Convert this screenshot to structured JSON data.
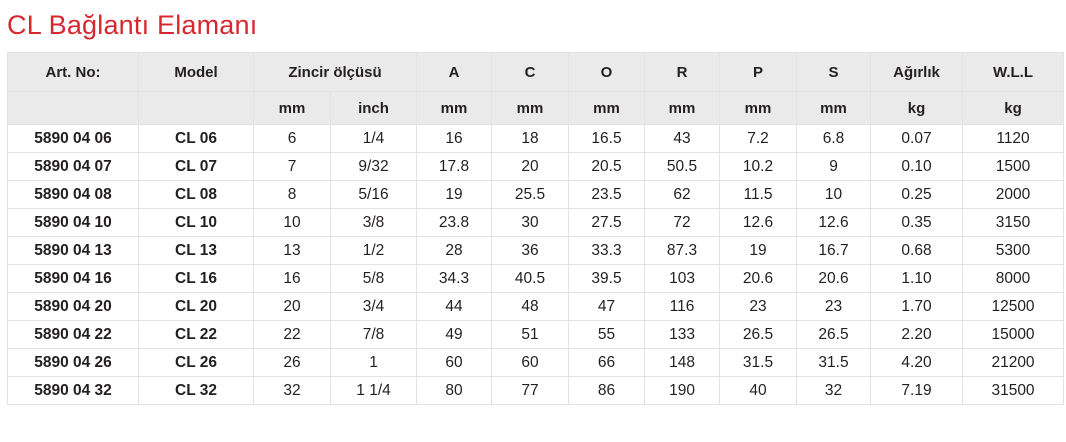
{
  "title": "CL Bağlantı Elamanı",
  "header_top": {
    "art_no": "Art. No:",
    "model": "Model",
    "chain_size": "Zincir ölçüsü",
    "a": "A",
    "c": "C",
    "o": "O",
    "r": "R",
    "p": "P",
    "s": "S",
    "weight": "Ağırlık",
    "wll": "W.L.L"
  },
  "header_units": {
    "mm": "mm",
    "inch": "inch",
    "a": "mm",
    "c": "mm",
    "o": "mm",
    "r": "mm",
    "p": "mm",
    "s": "mm",
    "weight": "kg",
    "wll": "kg"
  },
  "rows": [
    [
      "5890 04 06",
      "CL 06",
      "6",
      "1/4",
      "16",
      "18",
      "16.5",
      "43",
      "7.2",
      "6.8",
      "0.07",
      "1120"
    ],
    [
      "5890 04 07",
      "CL 07",
      "7",
      "9/32",
      "17.8",
      "20",
      "20.5",
      "50.5",
      "10.2",
      "9",
      "0.10",
      "1500"
    ],
    [
      "5890 04 08",
      "CL 08",
      "8",
      "5/16",
      "19",
      "25.5",
      "23.5",
      "62",
      "11.5",
      "10",
      "0.25",
      "2000"
    ],
    [
      "5890 04 10",
      "CL 10",
      "10",
      "3/8",
      "23.8",
      "30",
      "27.5",
      "72",
      "12.6",
      "12.6",
      "0.35",
      "3150"
    ],
    [
      "5890 04 13",
      "CL 13",
      "13",
      "1/2",
      "28",
      "36",
      "33.3",
      "87.3",
      "19",
      "16.7",
      "0.68",
      "5300"
    ],
    [
      "5890 04 16",
      "CL 16",
      "16",
      "5/8",
      "34.3",
      "40.5",
      "39.5",
      "103",
      "20.6",
      "20.6",
      "1.10",
      "8000"
    ],
    [
      "5890 04 20",
      "CL 20",
      "20",
      "3/4",
      "44",
      "48",
      "47",
      "116",
      "23",
      "23",
      "1.70",
      "12500"
    ],
    [
      "5890 04 22",
      "CL 22",
      "22",
      "7/8",
      "49",
      "51",
      "55",
      "133",
      "26.5",
      "26.5",
      "2.20",
      "15000"
    ],
    [
      "5890 04 26",
      "CL 26",
      "26",
      "1",
      "60",
      "60",
      "66",
      "148",
      "31.5",
      "31.5",
      "4.20",
      "21200"
    ],
    [
      "5890 04 32",
      "CL 32",
      "32",
      "1 1/4",
      "80",
      "77",
      "86",
      "190",
      "40",
      "32",
      "7.19",
      "31500"
    ]
  ]
}
